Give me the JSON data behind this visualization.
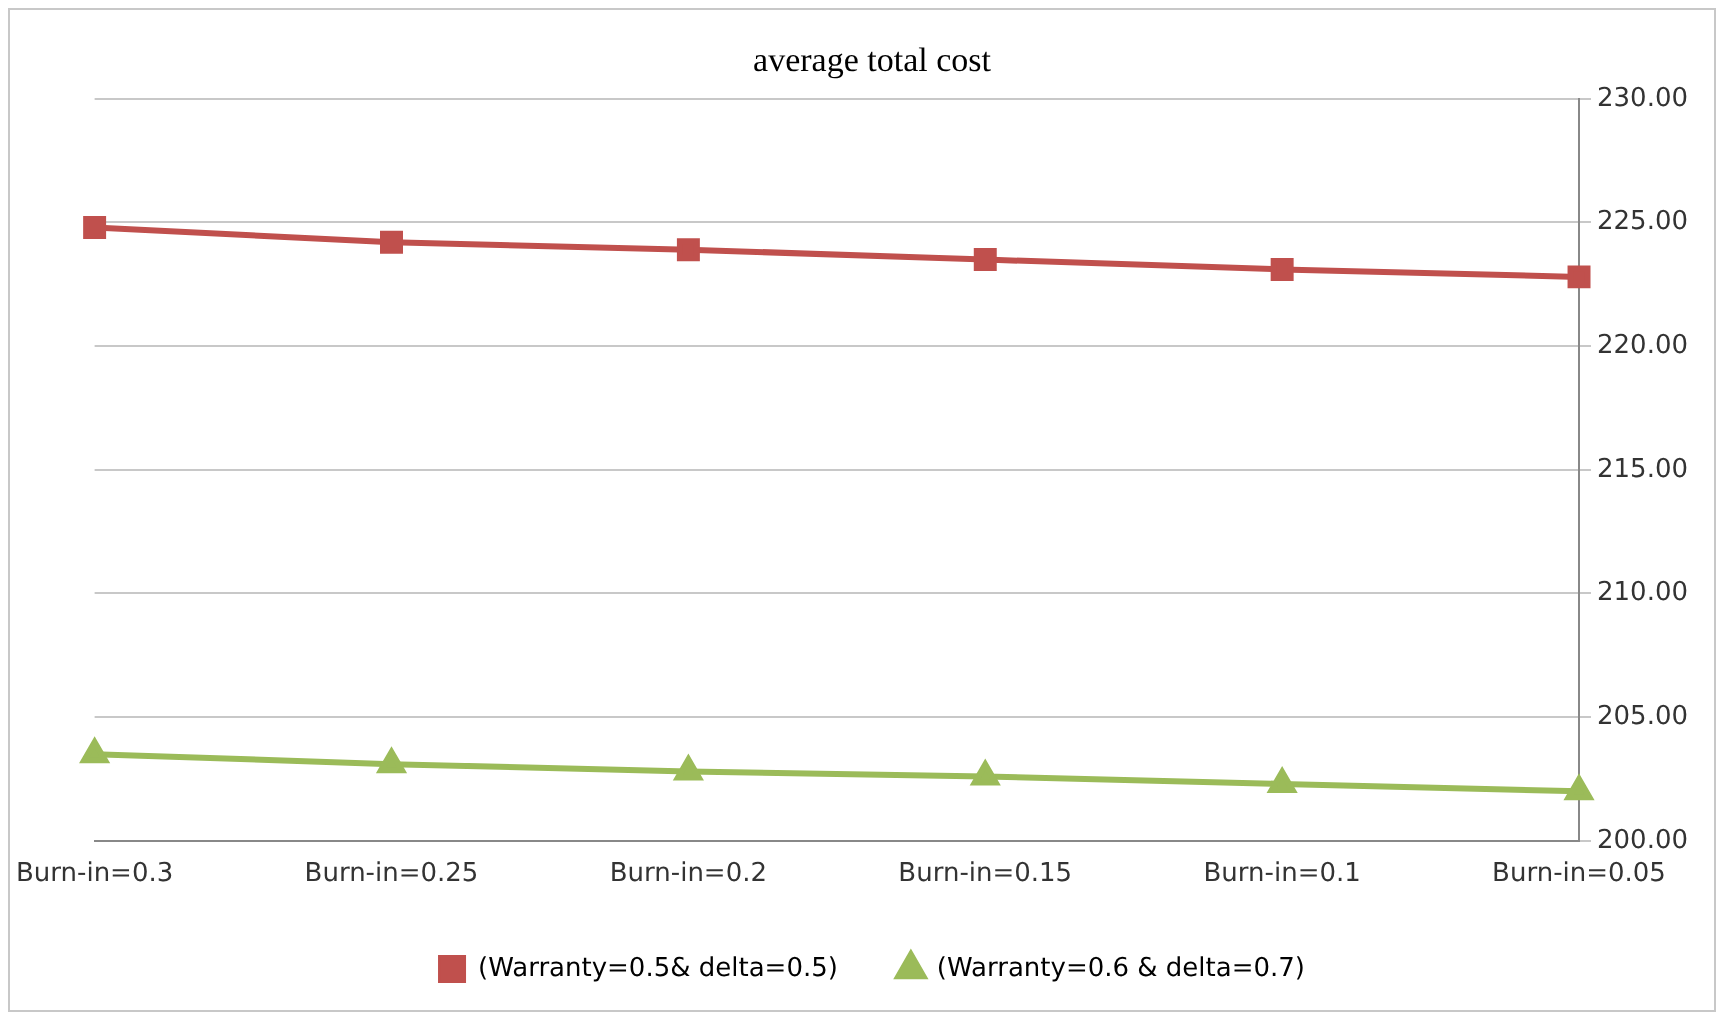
{
  "chart_data": {
    "type": "line",
    "title": "average total cost",
    "categories": [
      "Burn-in=0.3",
      "Burn-in=0.25",
      "Burn-in=0.2",
      "Burn-in=0.15",
      "Burn-in=0.1",
      "Burn-in=0.05"
    ],
    "series": [
      {
        "name": "(Warranty=0.5& delta=0.5)",
        "color": "#c0504d",
        "marker": "square",
        "values": [
          224.8,
          224.2,
          223.9,
          223.5,
          223.1,
          222.8
        ]
      },
      {
        "name": "(Warranty=0.6 & delta=0.7)",
        "color": "#9bbb59",
        "marker": "triangle",
        "values": [
          203.5,
          203.1,
          202.8,
          202.6,
          202.3,
          202.0
        ]
      }
    ],
    "ylim": [
      200,
      230
    ],
    "yticks": [
      {
        "value": 200,
        "label": "200.00"
      },
      {
        "value": 205,
        "label": "205.00"
      },
      {
        "value": 210,
        "label": "210.00"
      },
      {
        "value": 215,
        "label": "215.00"
      },
      {
        "value": 220,
        "label": "220.00"
      },
      {
        "value": 225,
        "label": "225.00"
      },
      {
        "value": 230,
        "label": "230.00"
      }
    ],
    "grid": "y",
    "legend": "bottom",
    "line_style": "solid"
  }
}
